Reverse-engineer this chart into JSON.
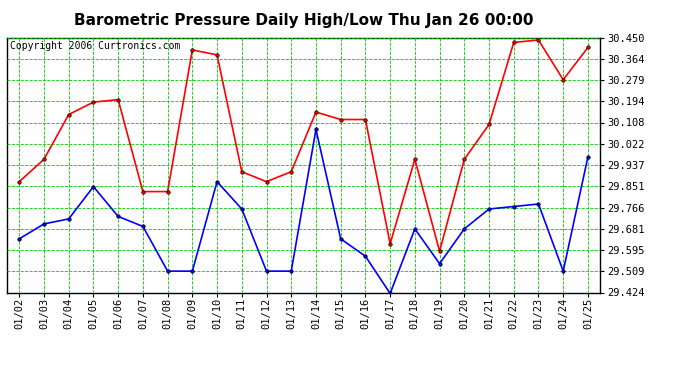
{
  "title": "Barometric Pressure Daily High/Low Thu Jan 26 00:00",
  "copyright": "Copyright 2006 Curtronics.com",
  "x_labels": [
    "01/02",
    "01/03",
    "01/04",
    "01/05",
    "01/06",
    "01/07",
    "01/08",
    "01/09",
    "01/10",
    "01/11",
    "01/12",
    "01/13",
    "01/14",
    "01/15",
    "01/16",
    "01/17",
    "01/18",
    "01/19",
    "01/20",
    "01/21",
    "01/22",
    "01/23",
    "01/24",
    "01/25"
  ],
  "high_values": [
    29.87,
    29.96,
    30.14,
    30.19,
    30.2,
    29.83,
    29.83,
    30.4,
    30.38,
    29.91,
    29.87,
    29.91,
    30.15,
    30.12,
    30.12,
    29.62,
    29.96,
    29.59,
    29.96,
    30.1,
    30.43,
    30.44,
    30.28,
    30.41
  ],
  "low_values": [
    29.64,
    29.7,
    29.72,
    29.85,
    29.73,
    29.69,
    29.51,
    29.51,
    29.87,
    29.76,
    29.51,
    29.51,
    30.08,
    29.64,
    29.57,
    29.42,
    29.68,
    29.54,
    29.68,
    29.76,
    29.77,
    29.78,
    29.51,
    29.97
  ],
  "y_ticks": [
    29.424,
    29.509,
    29.595,
    29.681,
    29.766,
    29.851,
    29.937,
    30.022,
    30.108,
    30.194,
    30.279,
    30.364,
    30.45
  ],
  "y_min": 29.424,
  "y_max": 30.45,
  "high_color": "#ff0000",
  "low_color": "#0000ff",
  "grid_color": "#00cc00",
  "bg_color": "#ffffff",
  "plot_bg_color": "#ffffff",
  "title_fontsize": 11,
  "copyright_fontsize": 7,
  "tick_fontsize": 7.5
}
